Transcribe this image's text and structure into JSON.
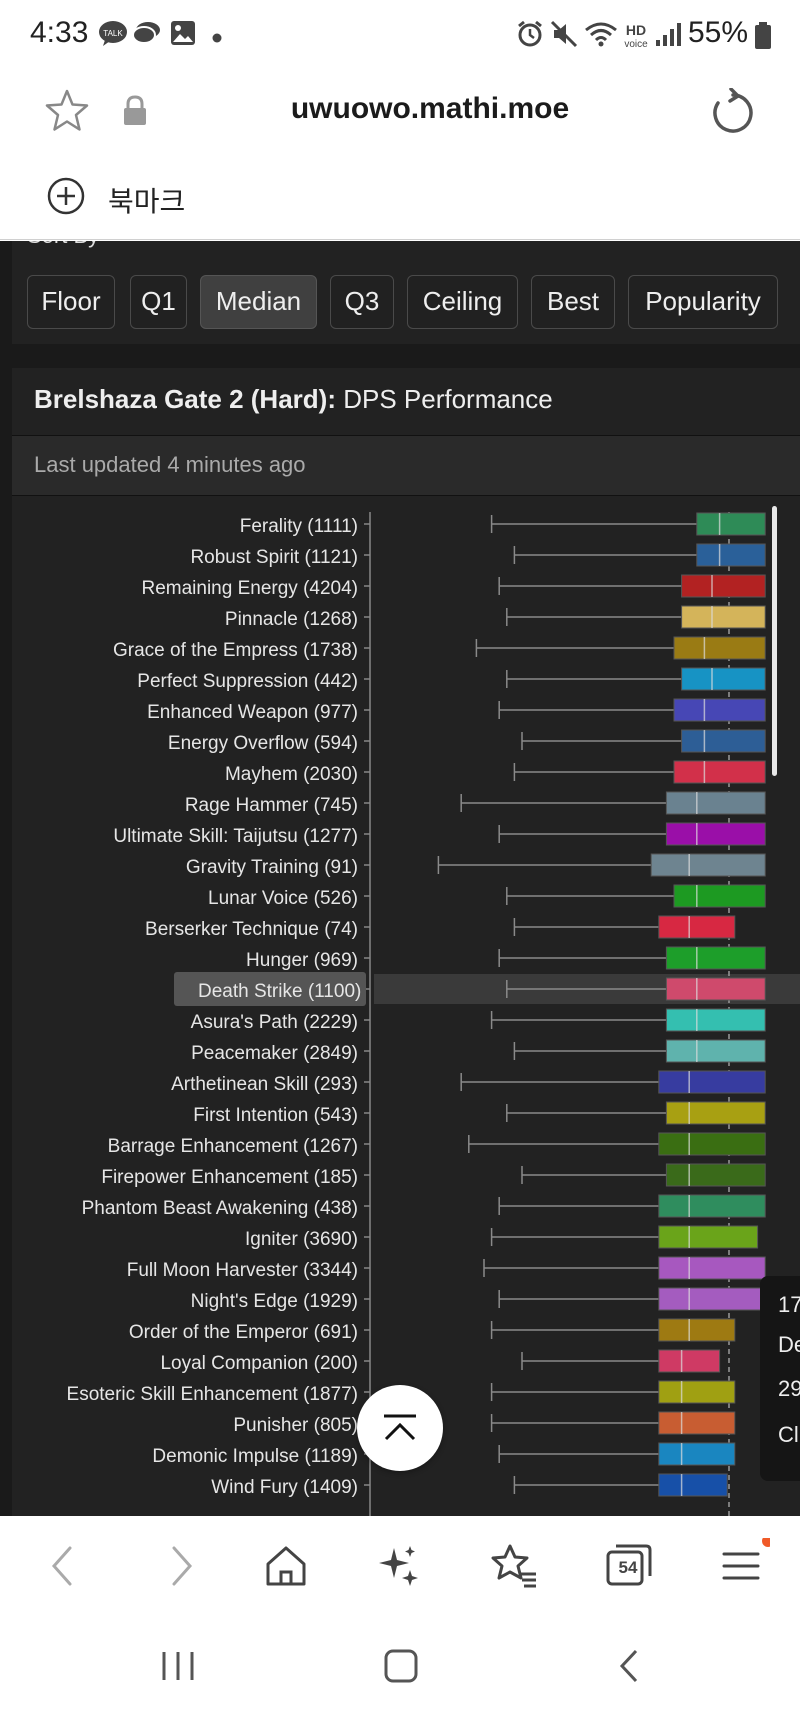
{
  "status_bar": {
    "time": "4:33",
    "battery": "55%",
    "icons": [
      "kakaotalk-icon",
      "chat-bubble-icon",
      "gallery-icon",
      "dot-icon",
      "alarm-icon",
      "mute-icon",
      "wifi-icon",
      "hd-voice-icon",
      "signal-icon",
      "battery-icon"
    ],
    "hd_label": "HD",
    "voice_label": "voice"
  },
  "browser": {
    "url": "uwuowo.mathi.moe",
    "bookmark_label": "북마크",
    "tabs_count": "54"
  },
  "sort": {
    "title": "Sort By",
    "options": [
      "Floor",
      "Q1",
      "Median",
      "Q3",
      "Ceiling",
      "Best",
      "Popularity"
    ],
    "selected": "Median"
  },
  "card": {
    "title_bold": "Brelshaza Gate 2 (Hard):",
    "title_rest": " DPS Performance",
    "updated": "Last updated 4 minutes ago"
  },
  "tooltip": {
    "lines": [
      "17",
      "De",
      "29",
      "Cl"
    ]
  },
  "chart_data": {
    "type": "box",
    "orientation": "horizontal",
    "highlighted": "Death Strike (1100)",
    "categories": [
      "Ferality (1111)",
      "Robust Spirit (1121)",
      "Remaining Energy (4204)",
      "Pinnacle (1268)",
      "Grace of the Empress (1738)",
      "Perfect Suppression (442)",
      "Enhanced Weapon (977)",
      "Energy Overflow (594)",
      "Mayhem (2030)",
      "Rage Hammer (745)",
      "Ultimate Skill: Taijutsu (1277)",
      "Gravity Training (91)",
      "Lunar Voice (526)",
      "Berserker Technique (74)",
      "Hunger (969)",
      "Death Strike (1100)",
      "Asura's Path (2229)",
      "Peacemaker (2849)",
      "Arthetinean Skill (293)",
      "First Intention (543)",
      "Barrage Enhancement (1267)",
      "Firepower Enhancement (185)",
      "Phantom Beast Awakening (438)",
      "Igniter (3690)",
      "Full Moon Harvester (3344)",
      "Night's Edge (1929)",
      "Order of the Emperor (691)",
      "Loyal Companion (200)",
      "Esoteric Skill Enhancement (1877)",
      "Punisher (805)",
      "Demonic Impulse (1189)",
      "Wind Fury (1409)"
    ],
    "colors": [
      "#2e8b57",
      "#2a6099",
      "#b22222",
      "#d4b45a",
      "#9a7b14",
      "#1793c4",
      "#4747b5",
      "#2d5e96",
      "#d2304a",
      "#6a8290",
      "#9a0fa8",
      "#6e8490",
      "#1d9a22",
      "#d72842",
      "#1d9e2a",
      "#cf4a6c",
      "#34bfb0",
      "#5fb3ad",
      "#373ca0",
      "#a8a012",
      "#3a6e12",
      "#3a6a1a",
      "#2f8d5e",
      "#6aa41a",
      "#a758bf",
      "#a45cbf",
      "#9e7a12",
      "#cf3a64",
      "#a0a012",
      "#c85d32",
      "#1a86c0",
      "#1750a8"
    ],
    "whisker_low": [
      0.16,
      0.19,
      0.17,
      0.18,
      0.14,
      0.18,
      0.17,
      0.2,
      0.19,
      0.12,
      0.17,
      0.09,
      0.18,
      0.19,
      0.17,
      0.18,
      0.16,
      0.19,
      0.12,
      0.18,
      0.13,
      0.2,
      0.17,
      0.16,
      0.15,
      0.17,
      0.16,
      0.2,
      0.16,
      0.16,
      0.17,
      0.19
    ],
    "q1": [
      0.43,
      0.43,
      0.41,
      0.41,
      0.4,
      0.41,
      0.4,
      0.41,
      0.4,
      0.39,
      0.39,
      0.37,
      0.4,
      0.38,
      0.39,
      0.39,
      0.39,
      0.39,
      0.38,
      0.39,
      0.38,
      0.39,
      0.38,
      0.38,
      0.38,
      0.38,
      0.38,
      0.38,
      0.38,
      0.38,
      0.38,
      0.38
    ],
    "median": [
      0.46,
      0.46,
      0.45,
      0.45,
      0.44,
      0.45,
      0.44,
      0.44,
      0.44,
      0.43,
      0.43,
      0.42,
      0.43,
      0.42,
      0.43,
      0.43,
      0.43,
      0.43,
      0.42,
      0.42,
      0.42,
      0.42,
      0.42,
      0.42,
      0.42,
      0.42,
      0.42,
      0.41,
      0.41,
      0.41,
      0.41,
      0.41
    ],
    "q3": [
      0.52,
      0.52,
      0.52,
      0.52,
      0.52,
      0.52,
      0.52,
      0.52,
      0.52,
      0.52,
      0.52,
      0.52,
      0.52,
      0.48,
      0.52,
      0.52,
      0.52,
      0.52,
      0.52,
      0.52,
      0.52,
      0.52,
      0.52,
      0.51,
      0.52,
      0.52,
      0.48,
      0.46,
      0.48,
      0.48,
      0.48,
      0.47
    ]
  }
}
